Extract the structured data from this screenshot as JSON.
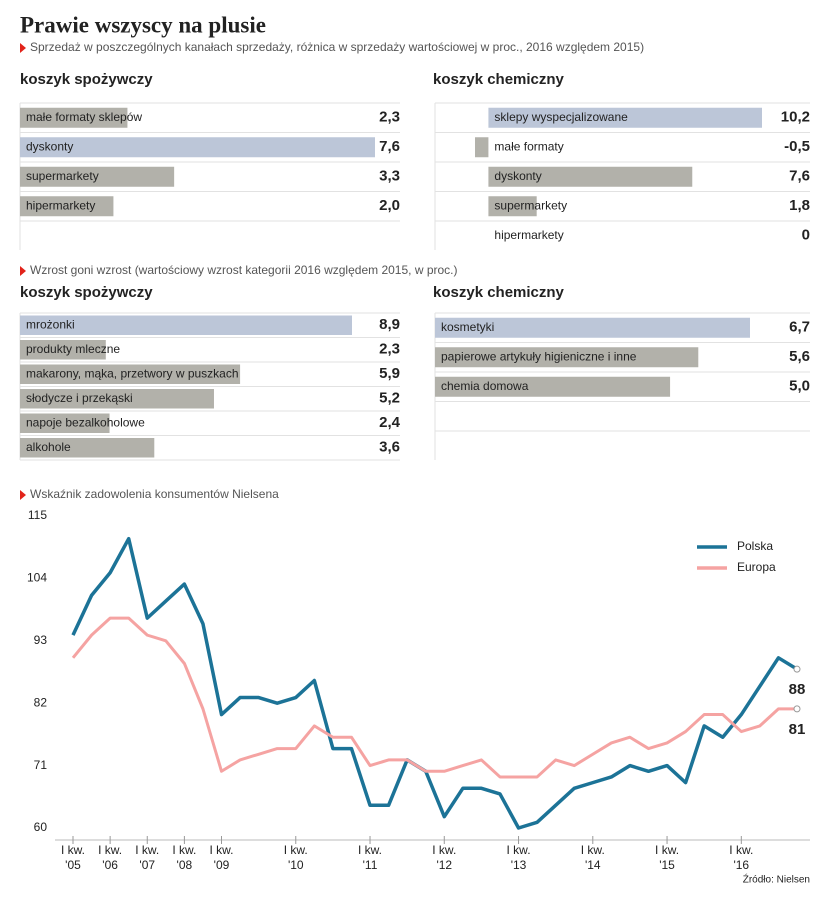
{
  "title": "Prawie wszyscy na plusie",
  "source": "Źródło: Nielsen",
  "chart_data": [
    {
      "type": "bar",
      "orientation": "horizontal",
      "subtitle": "Sprzedaż w poszczególnych kanałach sprzedaży, różnica w sprzedaży wartościowej w proc., 2016 względem 2015)",
      "title": "koszyk spożywczy",
      "categories": [
        "małe formaty sklepów",
        "dyskonty",
        "supermarkety",
        "hipermarkety"
      ],
      "values": [
        2.3,
        7.6,
        3.3,
        2.0
      ],
      "value_labels": [
        "2,3",
        "7,6",
        "3,3",
        "2,0"
      ],
      "colors": [
        "#b2b1aa",
        "#bcc6d8",
        "#b2b1aa",
        "#b2b1aa"
      ]
    },
    {
      "type": "bar",
      "orientation": "horizontal",
      "title": "koszyk chemiczny",
      "categories": [
        "sklepy wyspecjalizowane",
        "małe formaty",
        "dyskonty",
        "supermarkety",
        "hipermarkety"
      ],
      "values": [
        10.2,
        -0.5,
        7.6,
        1.8,
        0
      ],
      "value_labels": [
        "10,2",
        "-0,5",
        "7,6",
        "1,8",
        "0"
      ],
      "colors": [
        "#bcc6d8",
        "#b2b1aa",
        "#b2b1aa",
        "#b2b1aa",
        "#b2b1aa"
      ]
    },
    {
      "type": "bar",
      "orientation": "horizontal",
      "subtitle": "Wzrost goni wzrost (wartościowy wzrost kategorii 2016 względem 2015, w proc.)",
      "title": "koszyk spożywczy",
      "categories": [
        "mrożonki",
        "produkty mleczne",
        "makarony, mąka, przetwory w puszkach",
        "słodycze i przekąski",
        "napoje bezalkoholowe",
        "alkohole"
      ],
      "values": [
        8.9,
        2.3,
        5.9,
        5.2,
        2.4,
        3.6
      ],
      "value_labels": [
        "8,9",
        "2,3",
        "5,9",
        "5,2",
        "2,4",
        "3,6"
      ],
      "colors": [
        "#bcc6d8",
        "#b2b1aa",
        "#b2b1aa",
        "#b2b1aa",
        "#b2b1aa",
        "#b2b1aa"
      ]
    },
    {
      "type": "bar",
      "orientation": "horizontal",
      "title": "koszyk chemiczny",
      "categories": [
        "kosmetyki",
        "papierowe artykuły higieniczne i inne",
        "chemia domowa"
      ],
      "values": [
        6.7,
        5.6,
        5.0
      ],
      "value_labels": [
        "6,7",
        "5,6",
        "5,0"
      ],
      "colors": [
        "#bcc6d8",
        "#b2b1aa",
        "#b2b1aa"
      ]
    },
    {
      "type": "line",
      "title": "Wskaźnik zadowolenia konsumentów Nielsena",
      "categories": [
        "I kw.\n'05",
        null,
        "I kw.\n'06",
        null,
        "I kw.\n'07",
        null,
        "I kw.\n'08",
        null,
        "I kw.\n'09",
        null,
        null,
        null,
        "I kw.\n'10",
        null,
        null,
        null,
        "I kw.\n'11",
        null,
        null,
        null,
        "I kw.\n'12",
        null,
        null,
        null,
        "I kw.\n'13",
        null,
        null,
        null,
        "I kw.\n'14",
        null,
        null,
        null,
        "I kw.\n'15",
        null,
        null,
        null,
        "I kw.\n'16",
        null,
        null,
        null
      ],
      "series": [
        {
          "name": "Polska",
          "color": "#1c7397",
          "values": [
            94,
            101,
            105,
            111,
            97,
            100,
            103,
            96,
            80,
            83,
            83,
            82,
            83,
            86,
            74,
            74,
            64,
            64,
            72,
            70,
            62,
            67,
            67,
            66,
            60,
            61,
            64,
            67,
            68,
            69,
            71,
            70,
            71,
            68,
            78,
            76,
            80,
            85,
            90,
            88
          ]
        },
        {
          "name": "Europa",
          "color": "#f5a3a2",
          "values": [
            90,
            94,
            97,
            97,
            94,
            93,
            89,
            81,
            70,
            72,
            73,
            74,
            74,
            78,
            76,
            76,
            71,
            72,
            72,
            70,
            70,
            71,
            72,
            69,
            69,
            69,
            72,
            71,
            73,
            75,
            76,
            74,
            75,
            77,
            80,
            80,
            77,
            78,
            81,
            81
          ]
        }
      ],
      "ylim": [
        60,
        115
      ],
      "yticks": [
        60,
        71,
        82,
        93,
        104,
        115
      ],
      "grid": false,
      "legend": "upper right"
    }
  ]
}
